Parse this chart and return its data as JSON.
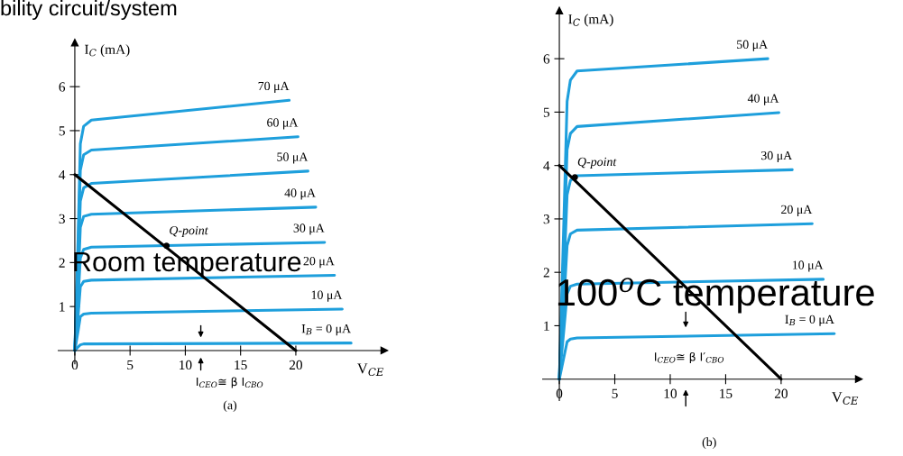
{
  "chart_data": [
    {
      "type": "line",
      "title": "bility circuit/system",
      "xlabel": "V$_{CE}$",
      "ylabel": "I$_{C}$ (mA)",
      "xlim": [
        -1.5,
        28
      ],
      "ylim": [
        -0.3,
        7
      ],
      "xticks": [
        0,
        5,
        10,
        15,
        20
      ],
      "yticks": [
        1,
        2,
        3,
        4,
        5,
        6
      ],
      "series": [
        {
          "name": "70 μA",
          "color": "#1e9fdc",
          "x": [
            0,
            0.3,
            0.5,
            0.8,
            1.5,
            19.4
          ],
          "values": [
            0,
            2.6,
            4.7,
            5.1,
            5.24,
            5.69
          ]
        },
        {
          "name": "60 μA",
          "color": "#1e9fdc",
          "x": [
            0,
            0.3,
            0.5,
            0.8,
            1.5,
            20.2
          ],
          "values": [
            0,
            2.3,
            4.1,
            4.45,
            4.56,
            4.86
          ]
        },
        {
          "name": "50 μA",
          "color": "#1e9fdc",
          "x": [
            0,
            0.3,
            0.5,
            0.8,
            1.5,
            21.1
          ],
          "values": [
            0,
            1.9,
            3.4,
            3.7,
            3.8,
            4.08
          ]
        },
        {
          "name": "40 μA",
          "color": "#1e9fdc",
          "x": [
            0,
            0.3,
            0.5,
            0.8,
            1.5,
            21.8
          ],
          "values": [
            0,
            1.55,
            2.8,
            3.05,
            3.1,
            3.26
          ]
        },
        {
          "name": "30 μA",
          "color": "#1e9fdc",
          "x": [
            0,
            0.3,
            0.5,
            0.8,
            1.5,
            22.6
          ],
          "values": [
            0,
            1.2,
            2.1,
            2.3,
            2.35,
            2.46
          ]
        },
        {
          "name": "20 μA",
          "color": "#1e9fdc",
          "x": [
            0,
            0.3,
            0.5,
            0.8,
            1.5,
            23.5
          ],
          "values": [
            0,
            0.8,
            1.45,
            1.57,
            1.6,
            1.71
          ]
        },
        {
          "name": "10 μA",
          "color": "#1e9fdc",
          "x": [
            0,
            0.3,
            0.5,
            0.8,
            1.5,
            24.2
          ],
          "values": [
            0,
            0.45,
            0.77,
            0.83,
            0.85,
            0.94
          ]
        },
        {
          "name": "I$_{B}$ = 0 μA",
          "color": "#1e9fdc",
          "x": [
            0,
            0.3,
            0.5,
            0.8,
            1.5,
            25
          ],
          "values": [
            0,
            0.08,
            0.13,
            0.15,
            0.15,
            0.17
          ]
        },
        {
          "color": "#000000",
          "x": [
            0,
            20
          ],
          "values": [
            4,
            0
          ]
        }
      ],
      "annotations": [
        "Room temperature",
        "(a)",
        "I$_{CEO}$≅ β I$_{CBO}$",
        {
          "text": "Q-point",
          "x": 8.3,
          "y": 2.38
        }
      ]
    },
    {
      "type": "line",
      "xlabel": "V$_{CE}$",
      "ylabel": "I$_{C}$ (mA)",
      "xlim": [
        -1.5,
        27
      ],
      "ylim": [
        -0.4,
        6.9
      ],
      "xticks": [
        0,
        5,
        10,
        15,
        20
      ],
      "yticks": [
        1,
        2,
        3,
        4,
        5,
        6
      ],
      "series": [
        {
          "name": "50 μA",
          "color": "#1e9fdc",
          "x": [
            0,
            0.4,
            0.7,
            1.0,
            1.6,
            18.8
          ],
          "values": [
            0,
            2.9,
            5.2,
            5.6,
            5.77,
            6.0
          ]
        },
        {
          "name": "40 μA",
          "color": "#1e9fdc",
          "x": [
            0,
            0.4,
            0.7,
            1.0,
            1.6,
            19.8
          ],
          "values": [
            0,
            2.4,
            4.3,
            4.6,
            4.73,
            4.99
          ]
        },
        {
          "name": "30 μA",
          "color": "#1e9fdc",
          "x": [
            0,
            0.4,
            0.7,
            1.0,
            1.6,
            21.0
          ],
          "values": [
            0,
            1.9,
            3.45,
            3.72,
            3.81,
            3.92
          ]
        },
        {
          "name": "20 μA",
          "color": "#1e9fdc",
          "x": [
            0,
            0.4,
            0.7,
            1.0,
            1.6,
            22.8
          ],
          "values": [
            0,
            1.4,
            2.5,
            2.72,
            2.79,
            2.91
          ]
        },
        {
          "name": "10 μA",
          "color": "#1e9fdc",
          "x": [
            0,
            0.4,
            0.7,
            1.0,
            1.6,
            23.8
          ],
          "values": [
            0,
            0.9,
            1.6,
            1.74,
            1.78,
            1.87
          ]
        },
        {
          "name": "I$_{B}$ = 0 μA",
          "color": "#1e9fdc",
          "x": [
            0,
            0.4,
            0.7,
            1.0,
            1.6,
            24.8
          ],
          "values": [
            0,
            0.4,
            0.7,
            0.75,
            0.77,
            0.85
          ]
        },
        {
          "color": "#000000",
          "x": [
            0,
            20
          ],
          "values": [
            4,
            0
          ]
        }
      ],
      "annotations": [
        "100$^{o}$C temperature",
        "(b)",
        {
          "text": "Q-point",
          "x": 1.4,
          "y": 3.78
        },
        {
          "text": "I$_{CEO}$≅ β I′$_{CBO}$",
          "x": 11.4,
          "y": 0.85
        }
      ]
    }
  ]
}
